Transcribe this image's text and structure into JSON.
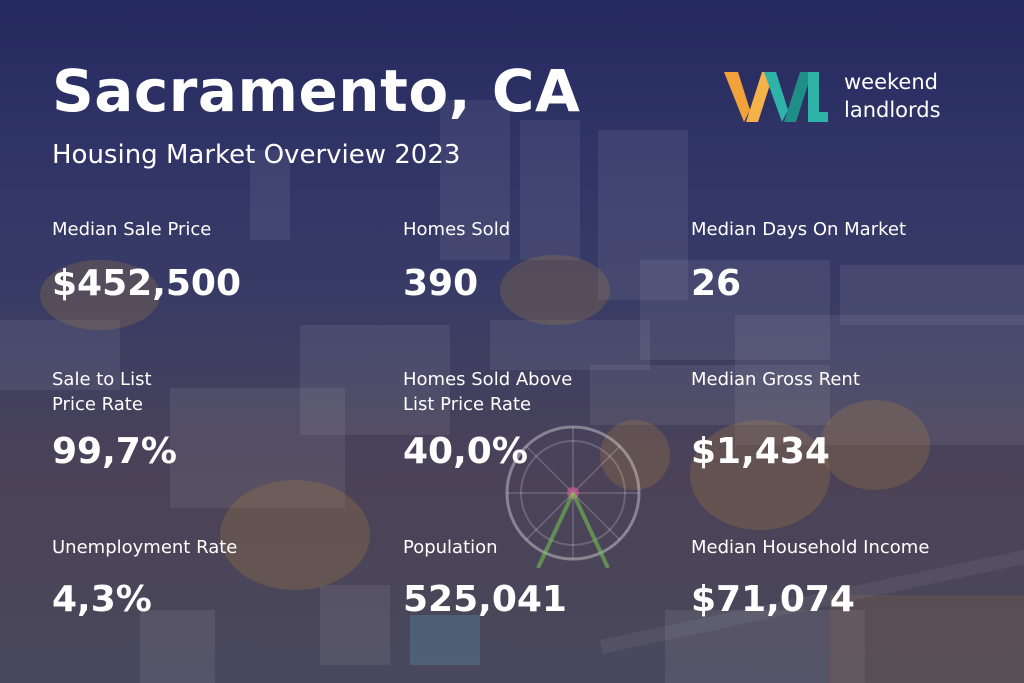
{
  "header": {
    "title": "Sacramento, CA",
    "subtitle": "Housing Market Overview 2023"
  },
  "logo": {
    "mark": "WL",
    "line1": "weekend",
    "line2": "landlords",
    "colors": {
      "orange": "#f2a23a",
      "teal": "#2fb3a8",
      "darkteal": "#1f8e86"
    }
  },
  "stats": [
    {
      "label": "Median Sale Price",
      "value": "$452,500"
    },
    {
      "label": "Homes Sold",
      "value": "390"
    },
    {
      "label": "Median Days On Market",
      "value": "26"
    },
    {
      "label": "Sale to List\nPrice Rate",
      "value": "99,7%"
    },
    {
      "label": "Homes Sold Above\nList Price Rate",
      "value": "40,0%"
    },
    {
      "label": "Median Gross Rent",
      "value": "$1,434"
    },
    {
      "label": "Unemployment Rate",
      "value": "4,3%"
    },
    {
      "label": "Population",
      "value": "525,041"
    },
    {
      "label": "Median Household Income",
      "value": "$71,074"
    }
  ],
  "background": {
    "overlay_color": "#262a5c",
    "scene": "aerial-city-ferris-wheel-photo"
  }
}
